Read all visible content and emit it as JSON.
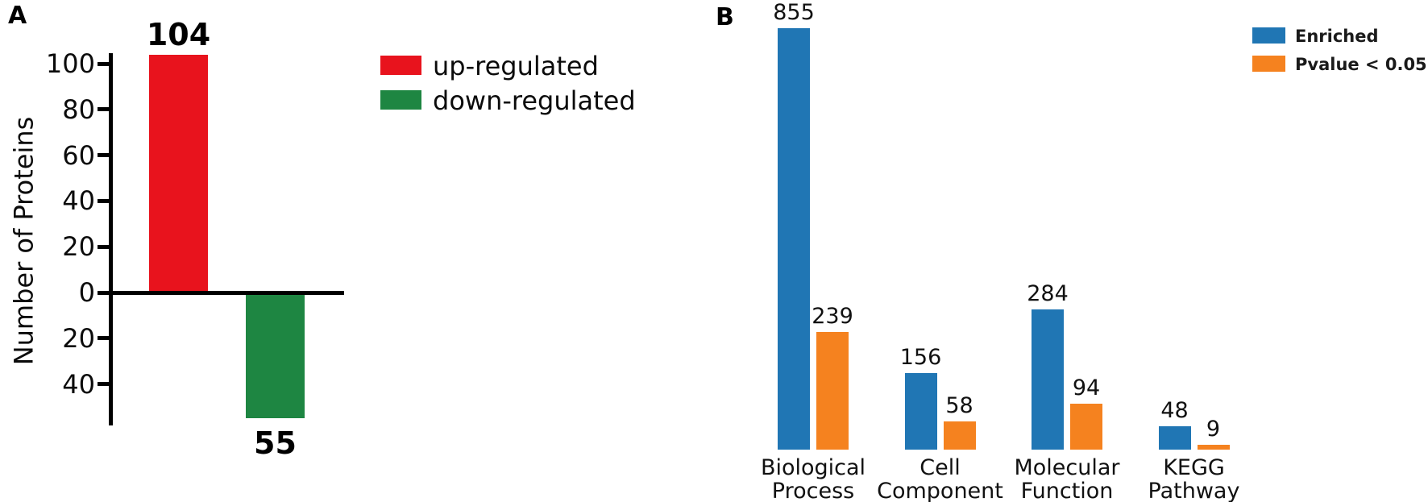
{
  "panels": {
    "a": {
      "label": "A"
    },
    "b": {
      "label": "B"
    }
  },
  "chart_data": [
    {
      "type": "bar",
      "panel": "A",
      "title": "",
      "xlabel": "",
      "ylabel": "Number of Proteins",
      "categories": [
        "up-regulated",
        "down-regulated"
      ],
      "values": [
        104,
        -55
      ],
      "bar_labels": [
        "104",
        "55"
      ],
      "bar_colors": [
        "#e8131d",
        "#1e8642"
      ],
      "ytick_values": [
        100,
        80,
        60,
        40,
        20,
        0,
        -20,
        -40
      ],
      "ytick_labels": [
        "100",
        "80",
        "60",
        "40",
        "20",
        "0",
        "20",
        "40"
      ],
      "ylim": [
        -58,
        104.5
      ],
      "grid": false,
      "legend_position": "right-of-plot",
      "legend": [
        {
          "label": "up-regulated",
          "color": "#e8131d"
        },
        {
          "label": "down-regulated",
          "color": "#1e8642"
        }
      ]
    },
    {
      "type": "bar",
      "panel": "B",
      "title": "",
      "xlabel": "",
      "ylabel": "",
      "categories": [
        "Biological\nProcess",
        "Cell\nComponent",
        "Molecular\nFunction",
        "KEGG\nPathway"
      ],
      "series": [
        {
          "name": "Enriched",
          "color": "#2076b4",
          "values": [
            855,
            156,
            284,
            48
          ]
        },
        {
          "name": "Pvalue < 0.05",
          "color": "#f5821f",
          "values": [
            239,
            58,
            94,
            9
          ]
        }
      ],
      "ylim": [
        0,
        855
      ],
      "grid": false,
      "axes_hidden": true,
      "legend_position": "top-right"
    }
  ]
}
